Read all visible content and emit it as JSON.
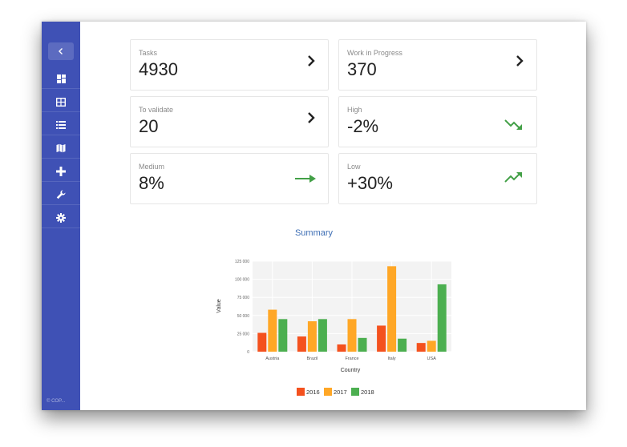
{
  "sidebar": {
    "footer": "© COP..."
  },
  "cards": [
    {
      "label": "Tasks",
      "value": "4930",
      "icon": "chevron-right-icon"
    },
    {
      "label": "Work in Progress",
      "value": "370",
      "icon": "chevron-right-icon"
    },
    {
      "label": "To validate",
      "value": "20",
      "icon": "chevron-right-icon"
    },
    {
      "label": "High",
      "value": "-2%",
      "icon": "trending-down-icon"
    },
    {
      "label": "Medium",
      "value": "8%",
      "icon": "trending-flat-icon"
    },
    {
      "label": "Low",
      "value": "+30%",
      "icon": "trending-up-icon"
    }
  ],
  "summary": {
    "title": "Summary"
  },
  "colors": {
    "sidebar": "#3f51b5",
    "accent_green": "#43a047",
    "s2016": "#f4511e",
    "s2017": "#ffa726",
    "s2018": "#4caf50"
  },
  "chart_data": {
    "type": "bar",
    "title": "Summary",
    "xlabel": "Country",
    "ylabel": "Value",
    "categories": [
      "Austria",
      "Brazil",
      "France",
      "Italy",
      "USA"
    ],
    "series": [
      {
        "name": "2016",
        "values": [
          26000,
          21000,
          10000,
          36000,
          12000
        ]
      },
      {
        "name": "2017",
        "values": [
          58000,
          42000,
          45000,
          118000,
          15000
        ]
      },
      {
        "name": "2018",
        "values": [
          45000,
          45000,
          19000,
          18000,
          93000
        ]
      }
    ],
    "ylim": [
      0,
      125000
    ],
    "yticks": [
      "0",
      "25 000",
      "50 000",
      "75 000",
      "100 000",
      "125 000"
    ],
    "grid": true,
    "legend": "bottom"
  }
}
